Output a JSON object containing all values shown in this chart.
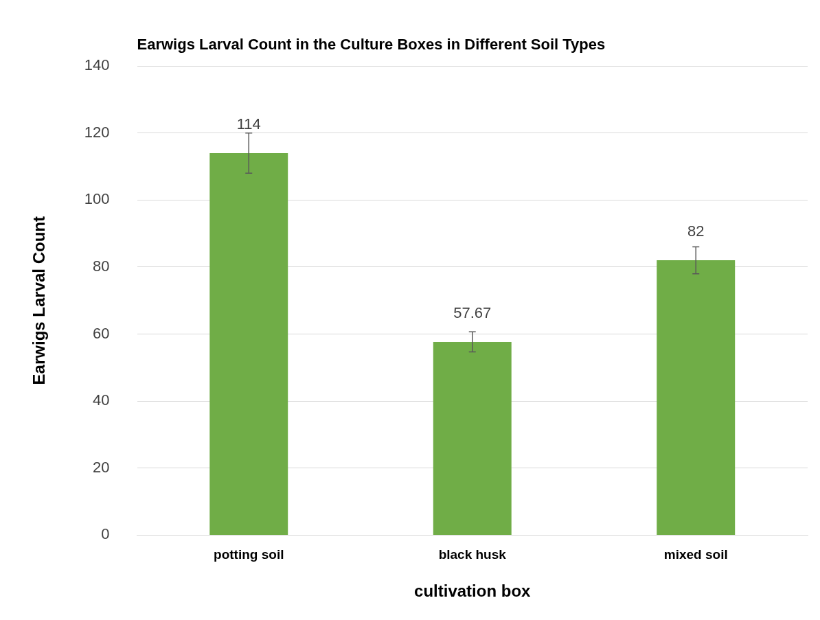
{
  "chart_data": {
    "type": "bar",
    "title": "Earwigs Larval Count in the Culture Boxes in Different Soil Types",
    "xlabel": "cultivation box",
    "ylabel": "Earwigs Larval Count",
    "categories": [
      "potting soil",
      "black husk",
      "mixed soil"
    ],
    "values": [
      114,
      57.67,
      82
    ],
    "errors": [
      6,
      3,
      4
    ],
    "color": "#70ad47",
    "ylim": [
      0,
      140
    ],
    "yticks": [
      0,
      20,
      40,
      60,
      80,
      100,
      120,
      140
    ],
    "grid": "y",
    "legend": false,
    "data_labels": true
  }
}
